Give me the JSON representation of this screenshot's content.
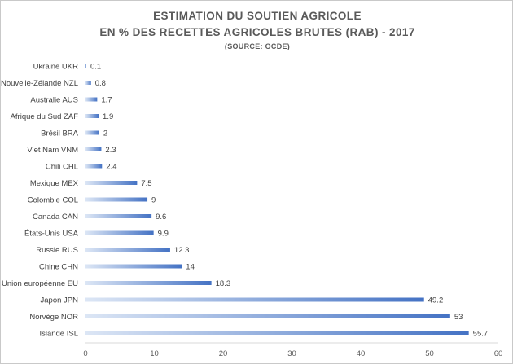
{
  "chart_data": {
    "type": "bar",
    "orientation": "horizontal",
    "title": "ESTIMATION DU SOUTIEN AGRICOLE",
    "subtitle": "EN % DES RECETTES AGRICOLES BRUTES (RAB) - 2017",
    "source": "(SOURCE: OCDE)",
    "categories": [
      "Ukraine UKR",
      "Nouvelle-Zélande NZL",
      "Australie AUS",
      "Afrique du Sud ZAF",
      "Brésil BRA",
      "Viet Nam VNM",
      "Chili CHL",
      "Mexique MEX",
      "Colombie COL",
      "Canada CAN",
      "États-Unis USA",
      "Russie RUS",
      "Chine CHN",
      "Union européenne EU",
      "Japon JPN",
      "Norvège NOR",
      "Islande ISL"
    ],
    "values": [
      0.1,
      0.8,
      1.7,
      1.9,
      2,
      2.3,
      2.4,
      7.5,
      9,
      9.6,
      9.9,
      12.3,
      14,
      18.3,
      49.2,
      53,
      55.7
    ],
    "value_labels": [
      "0.1",
      "0.8",
      "1.7",
      "1.9",
      "2",
      "2.3",
      "2.4",
      "7.5",
      "9",
      "9.6",
      "9.9",
      "12.3",
      "14",
      "18.3",
      "49.2",
      "53",
      "55.7"
    ],
    "xlim": [
      0,
      60
    ],
    "x_ticks": [
      "0",
      "10",
      "20",
      "30",
      "40",
      "50",
      "60"
    ],
    "x_tick_values": [
      0,
      10,
      20,
      30,
      40,
      50,
      60
    ],
    "grid": false,
    "legend": "none",
    "colors": {
      "bar_light": "#dce6f5",
      "bar_dark": "#4472c4"
    }
  }
}
